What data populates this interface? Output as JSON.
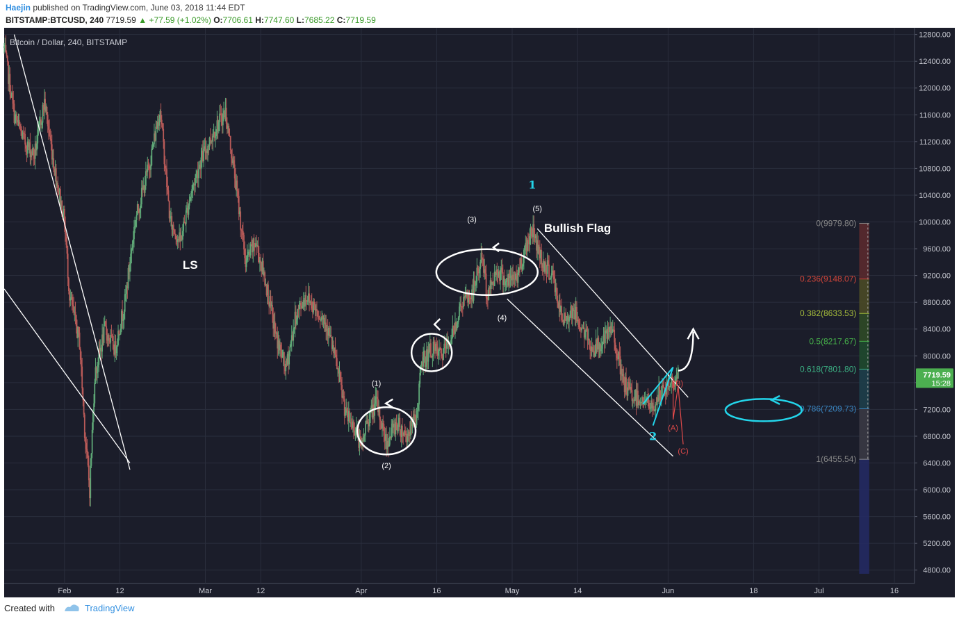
{
  "header": {
    "author": "Haejin",
    "published": "published on TradingView.com, June 03, 2018 11:44 EDT",
    "symbol": "BITSTAMP:BTCUSD, 240",
    "last": "7719.59",
    "change": "+77.59 (+1.02%)",
    "o_label": "O:",
    "o_val": "7706.61",
    "h_label": "H:",
    "h_val": "7747.60",
    "l_label": "L:",
    "l_val": "7685.22",
    "c_label": "C:",
    "c_val": "7719.59"
  },
  "footer": {
    "created": "Created with",
    "brand": "TradingView"
  },
  "colors": {
    "background": "#1b1d2a",
    "grid": "#2a2e3d",
    "up_candle": "#5fa877",
    "down_candle": "#b85a58",
    "annotation": "#ffffff",
    "cyan": "#23d5ea",
    "red_wave": "#e04a4a",
    "price_tag": "#4caf50"
  },
  "chart_data": {
    "type": "candlestick",
    "title": "Bitcoin / Dollar, 240, BITSTAMP",
    "ylim": [
      4600,
      12900
    ],
    "y_ticks": [
      4800,
      5200,
      5600,
      6000,
      6400,
      6800,
      7200,
      7600,
      8000,
      8400,
      8800,
      9200,
      9600,
      10000,
      10400,
      10800,
      11200,
      11600,
      12000,
      12400,
      12800
    ],
    "y_tick_labels": [
      "4800.00",
      "5200.00",
      "5600.00",
      "6000.00",
      "6400.00",
      "6800.00",
      "7200.00",
      "7600.00",
      "8000.00",
      "8400.00",
      "8800.00",
      "9200.00",
      "9600.00",
      "10000.00",
      "10400.00",
      "10800.00",
      "11200.00",
      "11600.00",
      "12000.00",
      "12400.00",
      "12800.00"
    ],
    "x_start": "2018-01-20",
    "x_end": "2018-07-20",
    "x_ticks": [
      {
        "date": "2018-02-01",
        "label": "Feb"
      },
      {
        "date": "2018-02-12",
        "label": "12"
      },
      {
        "date": "2018-03-01",
        "label": "Mar"
      },
      {
        "date": "2018-03-12",
        "label": "12"
      },
      {
        "date": "2018-04-01",
        "label": "Apr"
      },
      {
        "date": "2018-04-16",
        "label": "16"
      },
      {
        "date": "2018-05-01",
        "label": "May"
      },
      {
        "date": "2018-05-14",
        "label": "14"
      },
      {
        "date": "2018-06-01",
        "label": "Jun"
      },
      {
        "date": "2018-06-18",
        "label": "18"
      },
      {
        "date": "2018-07-01",
        "label": "Jul"
      },
      {
        "date": "2018-07-16",
        "label": "16"
      }
    ],
    "price_path": [
      [
        "2018-01-20",
        12600
      ],
      [
        "2018-01-22",
        11600
      ],
      [
        "2018-01-24",
        11200
      ],
      [
        "2018-01-26",
        11000
      ],
      [
        "2018-01-28",
        11800
      ],
      [
        "2018-01-30",
        10800
      ],
      [
        "2018-02-01",
        10000
      ],
      [
        "2018-02-02",
        8900
      ],
      [
        "2018-02-04",
        8200
      ],
      [
        "2018-02-05",
        6900
      ],
      [
        "2018-02-06",
        6000
      ],
      [
        "2018-02-07",
        7700
      ],
      [
        "2018-02-09",
        8400
      ],
      [
        "2018-02-11",
        8100
      ],
      [
        "2018-02-13",
        8800
      ],
      [
        "2018-02-15",
        10000
      ],
      [
        "2018-02-18",
        10900
      ],
      [
        "2018-02-20",
        11700
      ],
      [
        "2018-02-22",
        10000
      ],
      [
        "2018-02-24",
        9700
      ],
      [
        "2018-02-26",
        10400
      ],
      [
        "2018-02-28",
        10900
      ],
      [
        "2018-03-03",
        11400
      ],
      [
        "2018-03-05",
        11650
      ],
      [
        "2018-03-07",
        10600
      ],
      [
        "2018-03-09",
        9400
      ],
      [
        "2018-03-11",
        9700
      ],
      [
        "2018-03-13",
        9100
      ],
      [
        "2018-03-15",
        8300
      ],
      [
        "2018-03-17",
        7800
      ],
      [
        "2018-03-19",
        8600
      ],
      [
        "2018-03-21",
        8900
      ],
      [
        "2018-03-23",
        8700
      ],
      [
        "2018-03-25",
        8500
      ],
      [
        "2018-03-27",
        7900
      ],
      [
        "2018-03-29",
        7100
      ],
      [
        "2018-03-31",
        6900
      ],
      [
        "2018-04-01",
        6600
      ],
      [
        "2018-04-02",
        7000
      ],
      [
        "2018-04-04",
        7300
      ],
      [
        "2018-04-06",
        6700
      ],
      [
        "2018-04-08",
        7000
      ],
      [
        "2018-04-10",
        6800
      ],
      [
        "2018-04-12",
        7100
      ],
      [
        "2018-04-13",
        7900
      ],
      [
        "2018-04-15",
        8100
      ],
      [
        "2018-04-17",
        8000
      ],
      [
        "2018-04-19",
        8300
      ],
      [
        "2018-04-21",
        8800
      ],
      [
        "2018-04-23",
        8900
      ],
      [
        "2018-04-25",
        9500
      ],
      [
        "2018-04-26",
        8900
      ],
      [
        "2018-04-28",
        9300
      ],
      [
        "2018-04-30",
        9100
      ],
      [
        "2018-05-02",
        9200
      ],
      [
        "2018-05-04",
        9700
      ],
      [
        "2018-05-05",
        9900
      ],
      [
        "2018-05-07",
        9400
      ],
      [
        "2018-05-09",
        9200
      ],
      [
        "2018-05-11",
        8500
      ],
      [
        "2018-05-13",
        8700
      ],
      [
        "2018-05-15",
        8400
      ],
      [
        "2018-05-17",
        8100
      ],
      [
        "2018-05-19",
        8200
      ],
      [
        "2018-05-21",
        8400
      ],
      [
        "2018-05-23",
        7600
      ],
      [
        "2018-05-25",
        7400
      ],
      [
        "2018-05-27",
        7350
      ],
      [
        "2018-05-29",
        7200
      ],
      [
        "2018-05-30",
        7400
      ],
      [
        "2018-06-01",
        7550
      ],
      [
        "2018-06-03",
        7720
      ]
    ],
    "fib_levels": [
      {
        "label": "0(9979.80)",
        "price": 9979.8,
        "color": "#888888"
      },
      {
        "label": "0.236(9148.07)",
        "price": 9148.07,
        "color": "#d0453a"
      },
      {
        "label": "0.382(8633.53)",
        "price": 8633.53,
        "color": "#a6bd3b"
      },
      {
        "label": "0.5(8217.67)",
        "price": 8217.67,
        "color": "#46b14a"
      },
      {
        "label": "0.618(7801.80)",
        "price": 7801.8,
        "color": "#3bb083"
      },
      {
        "label": "0.786(7209.73)",
        "price": 7209.73,
        "color": "#3a86c2"
      },
      {
        "label": "1(6455.54)",
        "price": 6455.54,
        "color": "#888888"
      }
    ],
    "last_price": {
      "label": "7719.59",
      "price": 7719.59,
      "countdown": "15:28"
    },
    "wave_labels": [
      {
        "text": "(1)",
        "date": "2018-04-04",
        "price": 7550
      },
      {
        "text": "(2)",
        "date": "2018-04-06",
        "price": 6320
      },
      {
        "text": "(3)",
        "date": "2018-04-23",
        "price": 10000
      },
      {
        "text": "(4)",
        "date": "2018-04-29",
        "price": 8530
      },
      {
        "text": "(5)",
        "date": "2018-05-06",
        "price": 10160
      },
      {
        "text": "1",
        "date": "2018-05-05",
        "price": 10500
      },
      {
        "text": "2",
        "date": "2018-05-29",
        "price": 6740
      },
      {
        "text": "(A)",
        "date": "2018-06-02",
        "price": 6890
      },
      {
        "text": "(B)",
        "date": "2018-06-03",
        "price": 7550
      },
      {
        "text": "(C)",
        "date": "2018-06-04",
        "price": 6540
      }
    ],
    "annotations": [
      {
        "text": "LS",
        "date": "2018-02-26",
        "price": 9300
      },
      {
        "text": "Bullish Flag",
        "date": "2018-05-14",
        "price": 9850
      }
    ]
  }
}
